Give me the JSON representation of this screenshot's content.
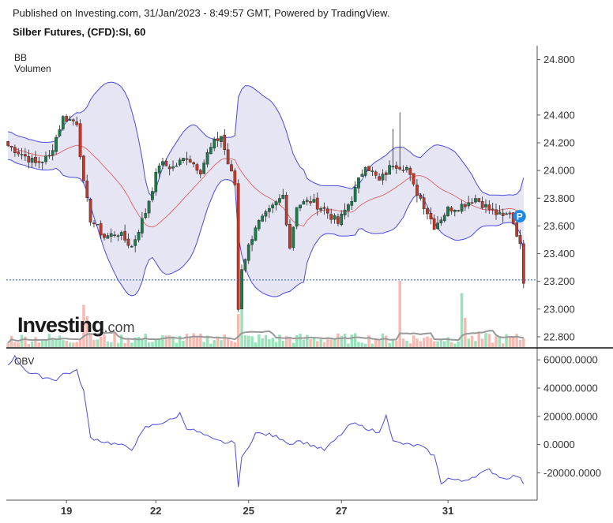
{
  "header": {
    "published": "Published on Investing.com, 31/Jan/2023 - 8:49:57 GMT, Powered by TradingView.",
    "title": "Silber Futures, (CFD):SI, 60"
  },
  "indicators": {
    "bb": "BB",
    "volume": "Volumen",
    "obv": "OBV"
  },
  "logo": {
    "main": "Investing",
    "suffix": ".com"
  },
  "colors": {
    "up": "#1e7a4a",
    "down": "#c0392b",
    "bb_band": "#4a4ae0",
    "bb_fill": "#dcdcf0",
    "bb_basis": "#e05050",
    "vol_up": "#7fdcaa",
    "vol_down": "#f4a9a0",
    "vol_ma": "#999999",
    "obv_line": "#4a4ae0",
    "last_price_line": "#2f5ec0",
    "marker": "#1e88e5"
  },
  "marker": {
    "label": "P"
  },
  "chart_data": {
    "type": "candlestick",
    "price_axis": {
      "ylim": [
        22.72,
        24.9
      ],
      "ticks": [
        "24.800",
        "24.400",
        "24.200",
        "24.000",
        "23.800",
        "23.600",
        "23.400",
        "23.200",
        "23.000",
        "22.800"
      ]
    },
    "obv_axis": {
      "ylim": [
        -36000,
        64000
      ],
      "ticks": [
        "60000.0000",
        "40000.0000",
        "20000.0000",
        "0.0000",
        "-20000.0000"
      ]
    },
    "x_ticks": [
      "19",
      "22",
      "25",
      "27",
      "31"
    ],
    "last_price": 23.21,
    "close_path": [
      [
        0,
        24.18
      ],
      [
        4,
        24.12
      ],
      [
        8,
        24.05
      ],
      [
        12,
        24.1
      ],
      [
        16,
        24.38
      ],
      [
        20,
        24.35
      ],
      [
        22,
        23.9
      ],
      [
        24,
        23.65
      ],
      [
        28,
        23.52
      ],
      [
        32,
        23.55
      ],
      [
        36,
        23.45
      ],
      [
        40,
        23.7
      ],
      [
        44,
        24.05
      ],
      [
        48,
        24.02
      ],
      [
        52,
        24.1
      ],
      [
        56,
        24.0
      ],
      [
        58,
        24.12
      ],
      [
        60,
        24.2
      ],
      [
        62,
        24.25
      ],
      [
        64,
        24.05
      ],
      [
        66,
        23.9
      ],
      [
        67,
        23.0
      ],
      [
        68,
        23.3
      ],
      [
        72,
        23.6
      ],
      [
        76,
        23.7
      ],
      [
        80,
        23.82
      ],
      [
        82,
        23.45
      ],
      [
        84,
        23.75
      ],
      [
        88,
        23.78
      ],
      [
        92,
        23.72
      ],
      [
        96,
        23.62
      ],
      [
        100,
        23.8
      ],
      [
        104,
        24.05
      ],
      [
        108,
        23.92
      ],
      [
        112,
        24.05
      ],
      [
        116,
        24.02
      ],
      [
        118,
        23.88
      ],
      [
        120,
        23.8
      ],
      [
        124,
        23.6
      ],
      [
        128,
        23.72
      ],
      [
        132,
        23.75
      ],
      [
        136,
        23.8
      ],
      [
        140,
        23.72
      ],
      [
        144,
        23.66
      ],
      [
        146,
        23.7
      ],
      [
        148,
        23.55
      ],
      [
        149,
        23.45
      ],
      [
        150,
        23.21
      ]
    ],
    "obv_path": [
      [
        0,
        57000
      ],
      [
        2,
        62000
      ],
      [
        4,
        56000
      ],
      [
        6,
        51000
      ],
      [
        10,
        48000
      ],
      [
        14,
        46000
      ],
      [
        16,
        50000
      ],
      [
        20,
        52000
      ],
      [
        22,
        38000
      ],
      [
        24,
        5000
      ],
      [
        28,
        2000
      ],
      [
        32,
        0
      ],
      [
        36,
        -3000
      ],
      [
        40,
        12000
      ],
      [
        44,
        15000
      ],
      [
        48,
        18000
      ],
      [
        50,
        22000
      ],
      [
        52,
        12000
      ],
      [
        56,
        8000
      ],
      [
        60,
        3000
      ],
      [
        64,
        1000
      ],
      [
        66,
        2000
      ],
      [
        67,
        -30000
      ],
      [
        68,
        -10000
      ],
      [
        72,
        8000
      ],
      [
        76,
        7000
      ],
      [
        80,
        4000
      ],
      [
        82,
        0
      ],
      [
        84,
        3000
      ],
      [
        88,
        0
      ],
      [
        92,
        -4000
      ],
      [
        96,
        5000
      ],
      [
        100,
        15000
      ],
      [
        104,
        12000
      ],
      [
        108,
        8000
      ],
      [
        110,
        22000
      ],
      [
        112,
        2000
      ],
      [
        116,
        0
      ],
      [
        120,
        -1000
      ],
      [
        124,
        -8000
      ],
      [
        126,
        -27000
      ],
      [
        128,
        -24000
      ],
      [
        132,
        -26000
      ],
      [
        136,
        -22000
      ],
      [
        140,
        -18000
      ],
      [
        144,
        -24000
      ],
      [
        148,
        -22000
      ],
      [
        150,
        -27000
      ]
    ]
  }
}
